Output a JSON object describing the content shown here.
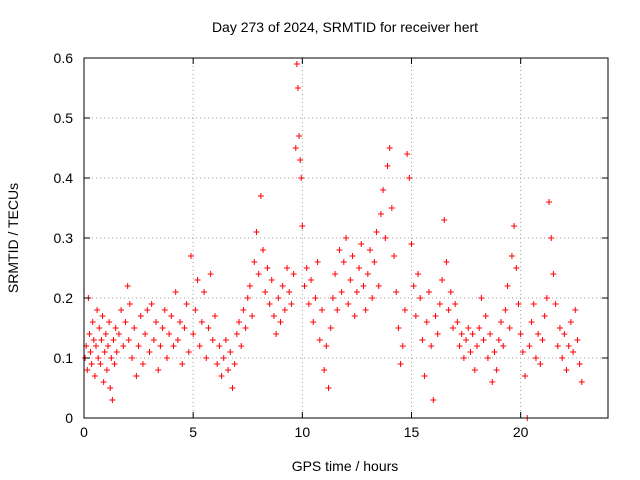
{
  "chart_data": {
    "type": "scatter",
    "title": "Day 273 of 2024, SRMTID for receiver hert",
    "xlabel": "GPS time / hours",
    "ylabel": "SRMTID / TECUs",
    "xlim": [
      0,
      24
    ],
    "ylim": [
      0,
      0.6
    ],
    "xticks": [
      0,
      5,
      10,
      15,
      20
    ],
    "yticks": [
      0,
      0.1,
      0.2,
      0.3,
      0.4,
      0.5,
      0.6
    ],
    "xtick_labels": [
      "0",
      "5",
      "10",
      "15",
      "20"
    ],
    "ytick_labels": [
      "0",
      "0.1",
      "0.2",
      "0.3",
      "0.4",
      "0.5",
      "0.6"
    ],
    "grid": true,
    "marker": "+",
    "color": "#ff0000",
    "series": [
      {
        "name": "SRMTID",
        "points": [
          [
            0.05,
            0.1
          ],
          [
            0.1,
            0.12
          ],
          [
            0.15,
            0.08
          ],
          [
            0.2,
            0.2
          ],
          [
            0.25,
            0.14
          ],
          [
            0.3,
            0.11
          ],
          [
            0.35,
            0.09
          ],
          [
            0.4,
            0.16
          ],
          [
            0.45,
            0.13
          ],
          [
            0.5,
            0.07
          ],
          [
            0.55,
            0.12
          ],
          [
            0.6,
            0.18
          ],
          [
            0.65,
            0.1
          ],
          [
            0.7,
            0.15
          ],
          [
            0.75,
            0.09
          ],
          [
            0.8,
            0.13
          ],
          [
            0.85,
            0.17
          ],
          [
            0.9,
            0.06
          ],
          [
            0.95,
            0.11
          ],
          [
            1.0,
            0.14
          ],
          [
            1.05,
            0.08
          ],
          [
            1.1,
            0.12
          ],
          [
            1.15,
            0.16
          ],
          [
            1.2,
            0.05
          ],
          [
            1.25,
            0.1
          ],
          [
            1.3,
            0.03
          ],
          [
            1.35,
            0.13
          ],
          [
            1.4,
            0.09
          ],
          [
            1.45,
            0.15
          ],
          [
            1.5,
            0.11
          ],
          [
            1.6,
            0.14
          ],
          [
            1.7,
            0.18
          ],
          [
            1.8,
            0.12
          ],
          [
            1.9,
            0.16
          ],
          [
            2.0,
            0.22
          ],
          [
            2.05,
            0.13
          ],
          [
            2.1,
            0.19
          ],
          [
            2.2,
            0.1
          ],
          [
            2.3,
            0.15
          ],
          [
            2.4,
            0.07
          ],
          [
            2.5,
            0.12
          ],
          [
            2.6,
            0.17
          ],
          [
            2.7,
            0.09
          ],
          [
            2.8,
            0.14
          ],
          [
            2.9,
            0.18
          ],
          [
            3.0,
            0.11
          ],
          [
            3.1,
            0.19
          ],
          [
            3.2,
            0.13
          ],
          [
            3.3,
            0.16
          ],
          [
            3.4,
            0.08
          ],
          [
            3.5,
            0.12
          ],
          [
            3.6,
            0.15
          ],
          [
            3.7,
            0.18
          ],
          [
            3.8,
            0.1
          ],
          [
            3.9,
            0.14
          ],
          [
            4.0,
            0.17
          ],
          [
            4.1,
            0.12
          ],
          [
            4.2,
            0.21
          ],
          [
            4.3,
            0.13
          ],
          [
            4.4,
            0.16
          ],
          [
            4.5,
            0.09
          ],
          [
            4.6,
            0.15
          ],
          [
            4.7,
            0.19
          ],
          [
            4.8,
            0.11
          ],
          [
            4.9,
            0.27
          ],
          [
            5.0,
            0.14
          ],
          [
            5.1,
            0.18
          ],
          [
            5.2,
            0.23
          ],
          [
            5.3,
            0.12
          ],
          [
            5.4,
            0.16
          ],
          [
            5.5,
            0.21
          ],
          [
            5.6,
            0.1
          ],
          [
            5.7,
            0.15
          ],
          [
            5.8,
            0.24
          ],
          [
            5.9,
            0.13
          ],
          [
            6.0,
            0.17
          ],
          [
            6.1,
            0.09
          ],
          [
            6.2,
            0.12
          ],
          [
            6.3,
            0.07
          ],
          [
            6.4,
            0.1
          ],
          [
            6.5,
            0.13
          ],
          [
            6.6,
            0.08
          ],
          [
            6.7,
            0.11
          ],
          [
            6.8,
            0.05
          ],
          [
            6.9,
            0.09
          ],
          [
            7.0,
            0.14
          ],
          [
            7.1,
            0.16
          ],
          [
            7.2,
            0.12
          ],
          [
            7.3,
            0.18
          ],
          [
            7.4,
            0.15
          ],
          [
            7.5,
            0.2
          ],
          [
            7.6,
            0.22
          ],
          [
            7.7,
            0.17
          ],
          [
            7.8,
            0.26
          ],
          [
            7.9,
            0.31
          ],
          [
            8.0,
            0.24
          ],
          [
            8.1,
            0.37
          ],
          [
            8.2,
            0.28
          ],
          [
            8.3,
            0.21
          ],
          [
            8.4,
            0.25
          ],
          [
            8.5,
            0.19
          ],
          [
            8.6,
            0.23
          ],
          [
            8.7,
            0.17
          ],
          [
            8.8,
            0.14
          ],
          [
            8.9,
            0.2
          ],
          [
            9.0,
            0.16
          ],
          [
            9.1,
            0.22
          ],
          [
            9.2,
            0.18
          ],
          [
            9.3,
            0.25
          ],
          [
            9.4,
            0.21
          ],
          [
            9.5,
            0.19
          ],
          [
            9.6,
            0.24
          ],
          [
            9.7,
            0.45
          ],
          [
            9.75,
            0.59
          ],
          [
            9.8,
            0.55
          ],
          [
            9.85,
            0.47
          ],
          [
            9.9,
            0.43
          ],
          [
            9.95,
            0.4
          ],
          [
            10.0,
            0.32
          ],
          [
            10.1,
            0.22
          ],
          [
            10.2,
            0.25
          ],
          [
            10.3,
            0.19
          ],
          [
            10.4,
            0.23
          ],
          [
            10.5,
            0.16
          ],
          [
            10.6,
            0.2
          ],
          [
            10.7,
            0.26
          ],
          [
            10.8,
            0.13
          ],
          [
            10.9,
            0.18
          ],
          [
            11.0,
            0.08
          ],
          [
            11.1,
            0.12
          ],
          [
            11.2,
            0.05
          ],
          [
            11.3,
            0.15
          ],
          [
            11.4,
            0.2
          ],
          [
            11.5,
            0.24
          ],
          [
            11.6,
            0.18
          ],
          [
            11.7,
            0.28
          ],
          [
            11.8,
            0.21
          ],
          [
            11.9,
            0.26
          ],
          [
            12.0,
            0.3
          ],
          [
            12.1,
            0.19
          ],
          [
            12.2,
            0.23
          ],
          [
            12.3,
            0.27
          ],
          [
            12.4,
            0.17
          ],
          [
            12.5,
            0.21
          ],
          [
            12.6,
            0.25
          ],
          [
            12.7,
            0.29
          ],
          [
            12.8,
            0.22
          ],
          [
            12.9,
            0.18
          ],
          [
            13.0,
            0.24
          ],
          [
            13.1,
            0.28
          ],
          [
            13.2,
            0.2
          ],
          [
            13.3,
            0.26
          ],
          [
            13.4,
            0.31
          ],
          [
            13.5,
            0.22
          ],
          [
            13.6,
            0.34
          ],
          [
            13.7,
            0.38
          ],
          [
            13.8,
            0.3
          ],
          [
            13.9,
            0.42
          ],
          [
            14.0,
            0.45
          ],
          [
            14.1,
            0.35
          ],
          [
            14.2,
            0.27
          ],
          [
            14.3,
            0.21
          ],
          [
            14.4,
            0.15
          ],
          [
            14.5,
            0.09
          ],
          [
            14.6,
            0.12
          ],
          [
            14.7,
            0.18
          ],
          [
            14.8,
            0.44
          ],
          [
            14.9,
            0.4
          ],
          [
            15.0,
            0.29
          ],
          [
            15.1,
            0.22
          ],
          [
            15.2,
            0.17
          ],
          [
            15.3,
            0.24
          ],
          [
            15.4,
            0.2
          ],
          [
            15.5,
            0.13
          ],
          [
            15.6,
            0.07
          ],
          [
            15.7,
            0.16
          ],
          [
            15.8,
            0.21
          ],
          [
            15.9,
            0.12
          ],
          [
            16.0,
            0.03
          ],
          [
            16.1,
            0.17
          ],
          [
            16.2,
            0.14
          ],
          [
            16.3,
            0.19
          ],
          [
            16.4,
            0.23
          ],
          [
            16.5,
            0.33
          ],
          [
            16.6,
            0.26
          ],
          [
            16.7,
            0.18
          ],
          [
            16.8,
            0.21
          ],
          [
            16.9,
            0.15
          ],
          [
            17.0,
            0.19
          ],
          [
            17.1,
            0.16
          ],
          [
            17.2,
            0.12
          ],
          [
            17.3,
            0.14
          ],
          [
            17.4,
            0.1
          ],
          [
            17.5,
            0.13
          ],
          [
            17.6,
            0.15
          ],
          [
            17.7,
            0.11
          ],
          [
            17.8,
            0.14
          ],
          [
            17.9,
            0.08
          ],
          [
            18.0,
            0.12
          ],
          [
            18.1,
            0.15
          ],
          [
            18.2,
            0.2
          ],
          [
            18.3,
            0.13
          ],
          [
            18.4,
            0.17
          ],
          [
            18.5,
            0.1
          ],
          [
            18.6,
            0.14
          ],
          [
            18.7,
            0.06
          ],
          [
            18.8,
            0.11
          ],
          [
            18.9,
            0.08
          ],
          [
            19.0,
            0.13
          ],
          [
            19.1,
            0.16
          ],
          [
            19.2,
            0.12
          ],
          [
            19.3,
            0.18
          ],
          [
            19.4,
            0.22
          ],
          [
            19.5,
            0.15
          ],
          [
            19.6,
            0.27
          ],
          [
            19.7,
            0.32
          ],
          [
            19.8,
            0.25
          ],
          [
            19.9,
            0.19
          ],
          [
            20.0,
            0.14
          ],
          [
            20.1,
            0.11
          ],
          [
            20.2,
            0.07
          ],
          [
            20.3,
            0.0
          ],
          [
            20.4,
            0.12
          ],
          [
            20.5,
            0.16
          ],
          [
            20.6,
            0.19
          ],
          [
            20.7,
            0.1
          ],
          [
            20.8,
            0.14
          ],
          [
            20.9,
            0.09
          ],
          [
            21.0,
            0.13
          ],
          [
            21.1,
            0.17
          ],
          [
            21.2,
            0.2
          ],
          [
            21.3,
            0.36
          ],
          [
            21.4,
            0.3
          ],
          [
            21.5,
            0.24
          ],
          [
            21.6,
            0.19
          ],
          [
            21.7,
            0.12
          ],
          [
            21.8,
            0.15
          ],
          [
            21.9,
            0.1
          ],
          [
            22.0,
            0.14
          ],
          [
            22.1,
            0.08
          ],
          [
            22.2,
            0.12
          ],
          [
            22.3,
            0.16
          ],
          [
            22.4,
            0.11
          ],
          [
            22.5,
            0.18
          ],
          [
            22.6,
            0.13
          ],
          [
            22.7,
            0.09
          ],
          [
            22.8,
            0.06
          ]
        ]
      }
    ]
  }
}
